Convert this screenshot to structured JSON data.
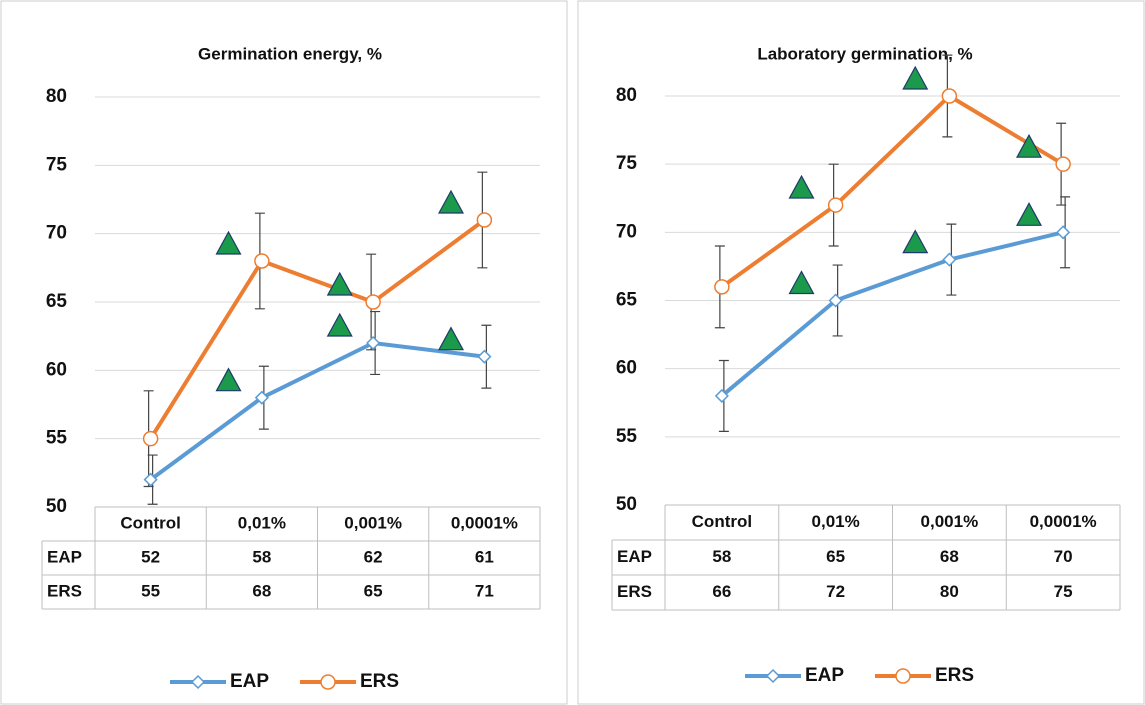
{
  "chart_data": [
    {
      "type": "line",
      "title": "Germination energy, %",
      "categories": [
        "Control",
        "0,01%",
        "0,001%",
        "0,0001%"
      ],
      "series": [
        {
          "name": "EAP",
          "color": "#5b9bd5",
          "marker": "diamond",
          "values": [
            52,
            58,
            62,
            61
          ],
          "error": [
            1.8,
            2.3,
            2.3,
            2.3
          ]
        },
        {
          "name": "ERS",
          "color": "#ed7d31",
          "marker": "circle",
          "values": [
            55,
            68,
            65,
            71
          ],
          "error": [
            3.5,
            3.5,
            3.5,
            3.5
          ]
        }
      ],
      "ylim": [
        50,
        80
      ],
      "yticks": [
        50,
        55,
        60,
        65,
        70,
        75,
        80
      ],
      "grid": true,
      "data_table": true,
      "legend": "bottom"
    },
    {
      "type": "line",
      "title": "Laboratory germination, %",
      "categories": [
        "Control",
        "0,01%",
        "0,001%",
        "0,0001%"
      ],
      "series": [
        {
          "name": "EAP",
          "color": "#5b9bd5",
          "marker": "diamond",
          "values": [
            58,
            65,
            68,
            70
          ],
          "error": [
            2.6,
            2.6,
            2.6,
            2.6
          ]
        },
        {
          "name": "ERS",
          "color": "#ed7d31",
          "marker": "circle",
          "values": [
            66,
            72,
            80,
            75
          ],
          "error": [
            3,
            3,
            3,
            3
          ]
        }
      ],
      "ylim": [
        50,
        80
      ],
      "yticks": [
        50,
        55,
        60,
        65,
        70,
        75,
        80
      ],
      "grid": true,
      "data_table": true,
      "legend": "bottom"
    }
  ]
}
